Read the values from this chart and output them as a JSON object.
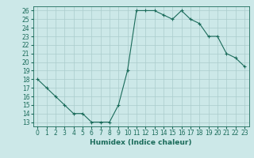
{
  "x": [
    0,
    1,
    2,
    3,
    4,
    5,
    6,
    7,
    8,
    9,
    10,
    11,
    12,
    13,
    14,
    15,
    16,
    17,
    18,
    19,
    20,
    21,
    22,
    23
  ],
  "y": [
    18,
    17,
    16,
    15,
    14,
    14,
    13,
    13,
    13,
    15,
    19,
    26,
    26,
    26,
    25.5,
    25,
    26,
    25,
    24.5,
    23,
    23,
    21,
    20.5,
    19.5
  ],
  "line_color": "#1a6b5a",
  "marker": "+",
  "marker_size": 3,
  "marker_lw": 0.8,
  "bg_color": "#cce8e8",
  "grid_color": "#aacccc",
  "xlabel": "Humidex (Indice chaleur)",
  "xlim": [
    -0.5,
    23.5
  ],
  "ylim": [
    12.5,
    26.5
  ],
  "yticks": [
    13,
    14,
    15,
    16,
    17,
    18,
    19,
    20,
    21,
    22,
    23,
    24,
    25,
    26
  ],
  "xticks": [
    0,
    1,
    2,
    3,
    4,
    5,
    6,
    7,
    8,
    9,
    10,
    11,
    12,
    13,
    14,
    15,
    16,
    17,
    18,
    19,
    20,
    21,
    22,
    23
  ],
  "tick_fontsize": 5.5,
  "xlabel_fontsize": 6.5
}
